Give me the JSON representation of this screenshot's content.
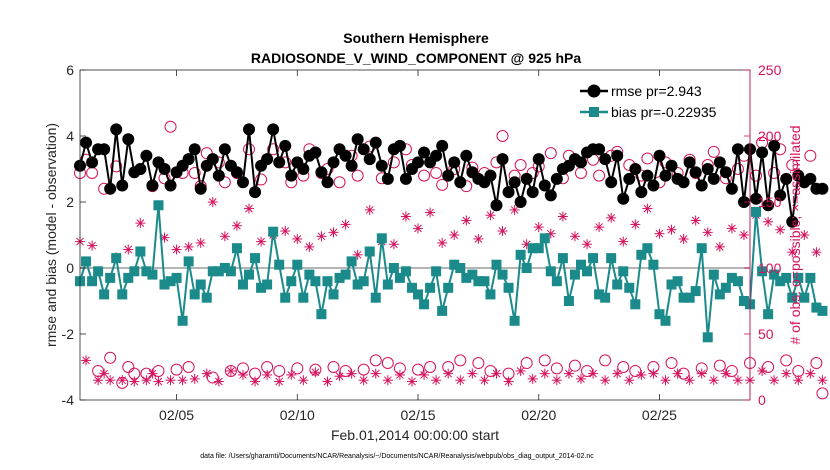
{
  "colors": {
    "rmse": "#000000",
    "bias": "#1a8a8a",
    "obs": "#d6125e",
    "zero_line": "#b5b5b5"
  },
  "chart_data": {
    "type": "line",
    "title": "Southern Hemisphere",
    "subtitle": "RADIOSONDE_V_WIND_COMPONENT @ 925 hPa",
    "xlabel": "Feb.01,2014 00:00:00 start",
    "ylabel_left": "rmse and bias (model - observation)",
    "ylabel_right": "# of obs: o=possible; ×=assimilated",
    "footnote": "data file: /Users/gharamti/Documents/NCAR/Reanalysis/~/Documents/NCAR/Reanalysis/webpub/obs_diag_output_2014-02.nc",
    "x_range": [
      1,
      28.75
    ],
    "x_step_days": 0.25,
    "x_ticks": [
      {
        "value": 5,
        "label": "02/05"
      },
      {
        "value": 10,
        "label": "02/10"
      },
      {
        "value": 15,
        "label": "02/15"
      },
      {
        "value": 20,
        "label": "02/20"
      },
      {
        "value": 25,
        "label": "02/25"
      }
    ],
    "y_left": {
      "range": [
        -4,
        6
      ],
      "ticks": [
        -4,
        -2,
        0,
        2,
        4,
        6
      ],
      "tick_labels": [
        "-4",
        "-2",
        "0",
        "2",
        "4",
        "6"
      ]
    },
    "y_right": {
      "range": [
        0,
        250
      ],
      "ticks": [
        0,
        50,
        100,
        150,
        200,
        250
      ],
      "tick_labels": [
        "0",
        "50",
        "100",
        "150",
        "200",
        "250"
      ]
    },
    "legend": {
      "placement": "top-right",
      "rmse_label": "rmse pr=2.943",
      "bias_label": "bias pr=-0.22935"
    },
    "series": [
      {
        "name": "rmse",
        "axis": "left",
        "marker": "circle",
        "values": [
          3.1,
          3.8,
          3.2,
          3.6,
          3.6,
          2.4,
          4.2,
          2.5,
          3.9,
          2.9,
          3.0,
          3.4,
          2.5,
          3.2,
          3.0,
          2.5,
          2.9,
          3.1,
          3.3,
          3.6,
          2.4,
          3.1,
          3.3,
          2.8,
          3.6,
          3.1,
          2.9,
          2.6,
          4.2,
          2.3,
          3.1,
          3.3,
          4.2,
          3.2,
          3.7,
          2.8,
          3.2,
          3.0,
          3.4,
          3.5,
          2.9,
          2.6,
          3.2,
          3.6,
          3.4,
          3.1,
          3.9,
          3.6,
          3.3,
          3.8,
          3.1,
          2.7,
          3.6,
          3.7,
          2.7,
          3.0,
          3.2,
          3.5,
          3.2,
          3.4,
          3.7,
          2.8,
          3.2,
          2.6,
          3.4,
          2.9,
          2.7,
          2.6,
          2.8,
          1.9,
          3.3,
          2.3,
          2.6,
          2.0,
          2.7,
          2.3,
          3.3,
          2.5,
          2.2,
          2.7,
          3.0,
          3.1,
          3.3,
          3.2,
          3.5,
          3.6,
          3.6,
          3.3,
          2.6,
          3.4,
          2.1,
          2.7,
          3.0,
          2.3,
          2.8,
          2.5,
          3.4,
          2.8,
          3.1,
          2.7,
          2.6,
          3.2,
          2.9,
          2.5,
          3.0,
          2.7,
          3.2,
          2.9,
          2.4,
          3.6,
          2.0,
          3.6,
          2.1,
          3.5,
          1.9,
          3.7,
          2.2,
          2.7,
          1.4,
          2.8,
          2.6,
          2.7,
          2.4,
          2.4
        ]
      },
      {
        "name": "bias",
        "axis": "left",
        "marker": "square",
        "values": [
          -0.4,
          0.2,
          -0.4,
          -0.1,
          -0.8,
          -0.3,
          0.3,
          -0.8,
          -0.3,
          -0.1,
          0.5,
          -0.1,
          -0.2,
          1.9,
          -0.5,
          -0.4,
          -0.3,
          -1.6,
          0.2,
          -0.8,
          -0.5,
          -0.9,
          -0.1,
          -0.1,
          0.0,
          -0.1,
          0.6,
          -0.5,
          -0.2,
          0.3,
          -0.6,
          -0.5,
          1.1,
          0.1,
          -0.9,
          -0.4,
          0.1,
          -0.9,
          -0.2,
          -0.4,
          -1.4,
          -0.4,
          -0.8,
          -0.3,
          -0.2,
          0.2,
          -0.5,
          -0.4,
          0.5,
          -0.9,
          0.9,
          -0.5,
          0.0,
          -0.3,
          -0.1,
          -0.6,
          -0.8,
          -1.1,
          -0.6,
          -0.1,
          -1.3,
          -0.6,
          0.1,
          0.0,
          -0.3,
          -0.2,
          -0.4,
          -0.4,
          -0.8,
          0.1,
          -0.2,
          -0.6,
          -1.6,
          0.4,
          0.0,
          0.6,
          0.6,
          0.9,
          -0.1,
          -0.4,
          0.3,
          -1.0,
          -0.2,
          0.1,
          -0.1,
          0.3,
          -0.8,
          -0.9,
          0.3,
          -0.5,
          -0.1,
          -0.6,
          -1.1,
          0.4,
          0.6,
          0.1,
          -1.4,
          -1.6,
          -0.5,
          -0.4,
          -0.9,
          -0.9,
          -0.7,
          0.6,
          -2.1,
          -0.2,
          -0.8,
          -0.6,
          -0.3,
          -0.4,
          -1.0,
          -1.1,
          1.7,
          -0.1,
          -1.4,
          -0.2,
          -0.4,
          -0.3,
          -0.9,
          -0.3,
          -0.9,
          -0.3,
          -1.2,
          -1.3
        ]
      },
      {
        "name": "obs_possible",
        "axis": "right",
        "marker": "circle-open",
        "values": [
          172,
          182,
          172,
          22,
          160,
          32,
          177,
          13,
          25,
          20,
          175,
          20,
          162,
          22,
          168,
          207,
          23,
          172,
          25,
          172,
          162,
          187,
          17,
          180,
          165,
          22,
          172,
          24,
          190,
          20,
          167,
          25,
          190,
          22,
          180,
          165,
          24,
          170,
          190,
          23,
          172,
          175,
          25,
          165,
          22,
          185,
          170,
          23,
          192,
          30,
          168,
          28,
          180,
          24,
          190,
          178,
          23,
          170,
          25,
          172,
          163,
          25,
          175,
          30,
          162,
          176,
          28,
          172,
          22,
          180,
          200,
          20,
          170,
          178,
          28,
          172,
          177,
          30,
          187,
          24,
          168,
          185,
          26,
          172,
          22,
          182,
          170,
          30,
          185,
          188,
          25,
          178,
          22,
          170,
          183,
          25,
          165,
          180,
          28,
          172,
          20,
          182,
          172,
          24,
          178,
          188,
          26,
          168,
          22,
          175,
          185,
          28,
          170,
          195,
          25,
          172,
          190,
          30,
          178,
          22,
          165,
          185,
          28,
          5
        ]
      },
      {
        "name": "obs_assimilated",
        "axis": "right",
        "marker": "star",
        "values": [
          120,
          30,
          117,
          15,
          20,
          15,
          108,
          15,
          114,
          14,
          134,
          15,
          20,
          14,
          123,
          15,
          114,
          15,
          116,
          16,
          119,
          20,
          150,
          14,
          124,
          22,
          132,
          19,
          145,
          14,
          120,
          19,
          125,
          14,
          128,
          19,
          122,
          15,
          116,
          21,
          124,
          14,
          127,
          18,
          133,
          20,
          110,
          15,
          144,
          20,
          120,
          15,
          118,
          19,
          139,
          14,
          130,
          19,
          142,
          15,
          119,
          20,
          125,
          15,
          136,
          20,
          122,
          15,
          140,
          20,
          128,
          14,
          144,
          22,
          118,
          16,
          131,
          20,
          126,
          15,
          139,
          20,
          124,
          16,
          118,
          20,
          131,
          15,
          138,
          20,
          120,
          15,
          133,
          19,
          145,
          20,
          126,
          15,
          129,
          20,
          122,
          15,
          136,
          20,
          127,
          15,
          116,
          20,
          130,
          15,
          125,
          15,
          140,
          22,
          135,
          15,
          129,
          20,
          112,
          15,
          125,
          20,
          112,
          15
        ]
      }
    ]
  }
}
